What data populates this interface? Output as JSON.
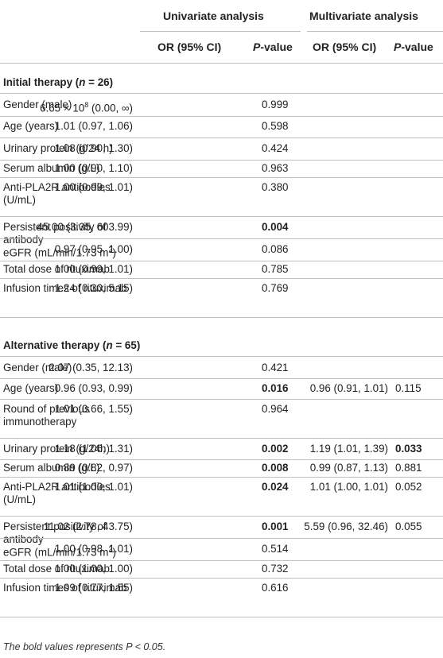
{
  "header": {
    "univariate": "Univariate analysis",
    "multivariate": "Multivariate analysis",
    "or_ci": "OR (95% CI)",
    "p_italic": "P",
    "p_suffix": "-value"
  },
  "sections": [
    {
      "title_pre": "Initial therapy (",
      "title_var": "n",
      "title_post": " = 26)",
      "rows": [
        {
          "label": "Gender (male)",
          "or1_base": "6.65 × 10",
          "or1_exp": "8",
          "or1_tail": " (0.00, ∞)",
          "p1": "0.999",
          "p1_bold": false,
          "or2": "",
          "p2": "",
          "p2_bold": false
        },
        {
          "label": "Age (years)",
          "or1": "1.01 (0.97, 1.06)",
          "p1": "0.598",
          "p1_bold": false,
          "or2": "",
          "p2": "",
          "p2_bold": false
        },
        {
          "label": "Urinary protein (g/24 h)",
          "or1": "1.08 (0.90, 1.30)",
          "p1": "0.424",
          "p1_bold": false,
          "or2": "",
          "p2": "",
          "p2_bold": false
        },
        {
          "label": "Serum albumin (g/L)",
          "or1": "1.00 (0.90, 1.10)",
          "p1": "0.963",
          "p1_bold": false,
          "or2": "",
          "p2": "",
          "p2_bold": false
        },
        {
          "label": "Anti-PLA2R antibodies (U/mL)",
          "or1": "1.00 (0.99, 1.01)",
          "p1": "0.380",
          "p1_bold": false,
          "or2": "",
          "p2": "",
          "p2_bold": false
        },
        {
          "label": "Persistent positivity of antibody",
          "or1": "45.00 (3.35, 603.99)",
          "p1": "0.004",
          "p1_bold": true,
          "or2": "",
          "p2": "",
          "p2_bold": false
        },
        {
          "label_base": "eGFR (mL/min/1.73 m",
          "label_sup": "2",
          "label_tail": ")",
          "or1": "0.97 (0.95, 1.00)",
          "p1": "0.086",
          "p1_bold": false,
          "or2": "",
          "p2": "",
          "p2_bold": false
        },
        {
          "label": "Total dose of rituximab",
          "or1": "1.00 (0.99, 1.01)",
          "p1": "0.785",
          "p1_bold": false,
          "or2": "",
          "p2": "",
          "p2_bold": false
        },
        {
          "label": "Infusion times of rituximab",
          "or1": "1.24 (0.30, 5.15)",
          "p1": "0.769",
          "p1_bold": false,
          "or2": "",
          "p2": "",
          "p2_bold": false
        }
      ]
    },
    {
      "title_pre": "Alternative therapy (",
      "title_var": "n",
      "title_post": " = 65)",
      "rows": [
        {
          "label": "Gender (male)",
          "or1": "2.07 (0.35, 12.13)",
          "p1": "0.421",
          "p1_bold": false,
          "or2": "",
          "p2": "",
          "p2_bold": false
        },
        {
          "label": "Age (years)",
          "or1": "0.96 (0.93, 0.99)",
          "p1": "0.016",
          "p1_bold": true,
          "or2": "0.96 (0.91, 1.01)",
          "p2": "0.115",
          "p2_bold": false
        },
        {
          "label": "Round of previous immunotherapy",
          "or1": "1.01 (0.66, 1.55)",
          "p1": "0.964",
          "p1_bold": false,
          "or2": "",
          "p2": "",
          "p2_bold": false
        },
        {
          "label": "Urinary protein (g/24h)",
          "or1": "1.18 (1.06, 1.31)",
          "p1": "0.002",
          "p1_bold": true,
          "or2": "1.19 (1.01, 1.39)",
          "p2": "0.033",
          "p2_bold": true
        },
        {
          "label": "Serum albumin (g/L)",
          "or1": "0.89 (0.82, 0.97)",
          "p1": "0.008",
          "p1_bold": true,
          "or2": "0.99 (0.87, 1.13)",
          "p2": "0.881",
          "p2_bold": false
        },
        {
          "label": "Anti-PLA2R antibodies (U/mL)",
          "or1": "1.01 (1.00, 1.01)",
          "p1": "0.024",
          "p1_bold": true,
          "or2": "1.01 (1.00, 1.01)",
          "p2": "0.052",
          "p2_bold": false
        },
        {
          "label": "Persistent positivity of antibody",
          "or1": "11.02 (2.78, 43.75)",
          "p1": "0.001",
          "p1_bold": true,
          "or2": "5.59 (0.96, 32.46)",
          "p2": "0.055",
          "p2_bold": false
        },
        {
          "label_base": "eGFR (mL/min/1.73 m",
          "label_sup": "2",
          "label_tail": ")",
          "or1": "1.00 (0.98, 1.01)",
          "p1": "0.514",
          "p1_bold": false,
          "or2": "",
          "p2": "",
          "p2_bold": false
        },
        {
          "label": "Total dose of rituximab",
          "or1": "1.00 (1.00, 1.00)",
          "p1": "0.732",
          "p1_bold": false,
          "or2": "",
          "p2": "",
          "p2_bold": false
        },
        {
          "label": "Infusion times of rituximab",
          "or1": "1.09 (0.77, 1.55)",
          "p1": "0.616",
          "p1_bold": false,
          "or2": "",
          "p2": "",
          "p2_bold": false
        }
      ]
    }
  ],
  "footnote": "The bold values represents P < 0.05."
}
